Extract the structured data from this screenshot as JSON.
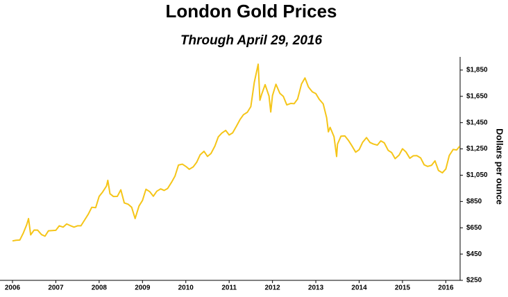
{
  "chart_data": {
    "type": "line",
    "title": "London Gold Prices",
    "subtitle": "Through April 29, 2016",
    "y_axis_label": "Dollars per ounce",
    "color": "#f5c518",
    "title_color": "#c9960c",
    "xlim": [
      2006,
      2016.33
    ],
    "xticks": [
      2006,
      2007,
      2008,
      2009,
      2010,
      2011,
      2012,
      2013,
      2014,
      2015,
      2016
    ],
    "ylim": [
      250,
      1950
    ],
    "yticks": [
      {
        "value": 250,
        "label": "$250"
      },
      {
        "value": 450,
        "label": "$450"
      },
      {
        "value": 650,
        "label": "$650"
      },
      {
        "value": 850,
        "label": "$850"
      },
      {
        "value": 1050,
        "label": "$1,050"
      },
      {
        "value": 1250,
        "label": "$1,250"
      },
      {
        "value": 1450,
        "label": "$1,450"
      },
      {
        "value": 1650,
        "label": "$1,650"
      },
      {
        "value": 1850,
        "label": "$1,850"
      }
    ],
    "x": [
      2006.0,
      2006.08,
      2006.17,
      2006.25,
      2006.33,
      2006.37,
      2006.42,
      2006.5,
      2006.58,
      2006.67,
      2006.75,
      2006.83,
      2006.92,
      2007.0,
      2007.08,
      2007.17,
      2007.25,
      2007.33,
      2007.42,
      2007.5,
      2007.58,
      2007.67,
      2007.75,
      2007.83,
      2007.92,
      2008.0,
      2008.08,
      2008.17,
      2008.2,
      2008.25,
      2008.33,
      2008.42,
      2008.5,
      2008.58,
      2008.67,
      2008.75,
      2008.83,
      2008.92,
      2009.0,
      2009.08,
      2009.17,
      2009.25,
      2009.33,
      2009.42,
      2009.5,
      2009.58,
      2009.67,
      2009.75,
      2009.83,
      2009.92,
      2010.0,
      2010.08,
      2010.17,
      2010.25,
      2010.33,
      2010.42,
      2010.5,
      2010.58,
      2010.67,
      2010.75,
      2010.83,
      2010.92,
      2011.0,
      2011.08,
      2011.17,
      2011.25,
      2011.33,
      2011.42,
      2011.5,
      2011.58,
      2011.67,
      2011.71,
      2011.75,
      2011.83,
      2011.92,
      2011.96,
      2012.0,
      2012.08,
      2012.17,
      2012.25,
      2012.33,
      2012.42,
      2012.5,
      2012.58,
      2012.67,
      2012.75,
      2012.83,
      2012.92,
      2013.0,
      2013.08,
      2013.17,
      2013.25,
      2013.29,
      2013.33,
      2013.42,
      2013.48,
      2013.5,
      2013.58,
      2013.67,
      2013.75,
      2013.83,
      2013.92,
      2014.0,
      2014.08,
      2014.17,
      2014.25,
      2014.33,
      2014.42,
      2014.5,
      2014.58,
      2014.67,
      2014.75,
      2014.83,
      2014.92,
      2015.0,
      2015.08,
      2015.17,
      2015.25,
      2015.33,
      2015.42,
      2015.5,
      2015.58,
      2015.67,
      2015.75,
      2015.83,
      2015.92,
      2016.0,
      2016.08,
      2016.17,
      2016.25,
      2016.32
    ],
    "values": [
      550,
      555,
      557,
      610,
      675,
      720,
      596,
      633,
      632,
      598,
      586,
      627,
      629,
      631,
      665,
      655,
      679,
      667,
      655,
      665,
      665,
      712,
      754,
      806,
      803,
      889,
      922,
      968,
      1011,
      909,
      888,
      889,
      939,
      839,
      829,
      806,
      720,
      816,
      858,
      943,
      924,
      890,
      928,
      946,
      934,
      949,
      996,
      1043,
      1127,
      1134,
      1117,
      1095,
      1113,
      1148,
      1205,
      1232,
      1193,
      1215,
      1271,
      1342,
      1370,
      1391,
      1356,
      1372,
      1424,
      1473,
      1510,
      1529,
      1572,
      1756,
      1895,
      1620,
      1665,
      1739,
      1652,
      1531,
      1656,
      1742,
      1673,
      1650,
      1585,
      1596,
      1594,
      1630,
      1744,
      1790,
      1721,
      1684,
      1671,
      1627,
      1593,
      1487,
      1380,
      1414,
      1343,
      1192,
      1286,
      1347,
      1349,
      1316,
      1275,
      1225,
      1244,
      1300,
      1336,
      1299,
      1287,
      1279,
      1311,
      1296,
      1239,
      1222,
      1176,
      1202,
      1251,
      1227,
      1179,
      1198,
      1199,
      1181,
      1129,
      1117,
      1125,
      1159,
      1086,
      1068,
      1097,
      1200,
      1246,
      1242,
      1270
    ]
  }
}
